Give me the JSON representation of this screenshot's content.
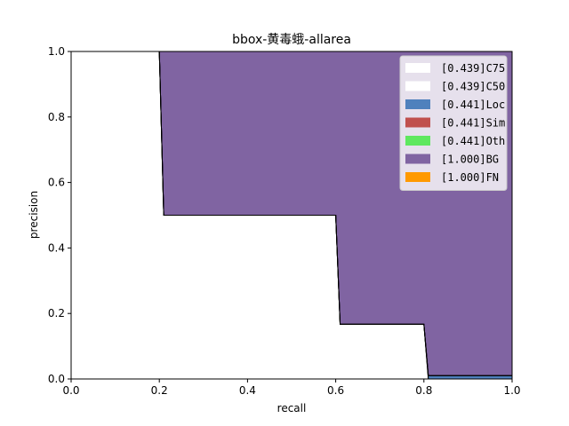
{
  "chart_data": {
    "type": "area",
    "title": "bbox-黄毒蛾-allarea",
    "xlabel": "recall",
    "ylabel": "precision",
    "xlim": [
      0,
      1
    ],
    "ylim": [
      0,
      1
    ],
    "xticks": [
      "0.0",
      "0.2",
      "0.4",
      "0.6",
      "0.8",
      "1.0"
    ],
    "yticks": [
      "0.0",
      "0.2",
      "0.4",
      "0.6",
      "0.8",
      "1.0"
    ],
    "grid": false,
    "legend_position": "top-right",
    "series": [
      {
        "name": "[0.439]C75",
        "color": "#ffffff",
        "x": [
          0,
          0.2,
          0.21,
          0.6,
          0.61,
          0.8,
          0.81,
          1.0
        ],
        "y": [
          1.0,
          1.0,
          0.5,
          0.5,
          0.167,
          0.167,
          0,
          0
        ]
      },
      {
        "name": "[0.439]C50",
        "color": "#ffffff",
        "x": [
          0,
          0.2,
          0.21,
          0.6,
          0.61,
          0.8,
          0.81,
          1.0
        ],
        "y": [
          1.0,
          1.0,
          0.5,
          0.5,
          0.167,
          0.167,
          0,
          0
        ]
      },
      {
        "name": "[0.441]Loc",
        "color": "#4f81bd",
        "x": [
          0,
          0.2,
          0.21,
          0.6,
          0.61,
          0.8,
          0.81,
          1.0
        ],
        "y": [
          1.0,
          1.0,
          0.5,
          0.5,
          0.167,
          0.167,
          0.01,
          0.01
        ]
      },
      {
        "name": "[0.441]Sim",
        "color": "#c0504d",
        "x": [
          0,
          0.2,
          0.21,
          0.6,
          0.61,
          0.8,
          0.81,
          1.0
        ],
        "y": [
          1.0,
          1.0,
          0.5,
          0.5,
          0.167,
          0.167,
          0.01,
          0.01
        ]
      },
      {
        "name": "[0.441]Oth",
        "color": "#5fe85f",
        "x": [
          0,
          0.2,
          0.21,
          0.6,
          0.61,
          0.8,
          0.81,
          1.0
        ],
        "y": [
          1.0,
          1.0,
          0.5,
          0.5,
          0.167,
          0.167,
          0.01,
          0.01
        ]
      },
      {
        "name": "[1.000]BG",
        "color": "#8064a2",
        "x": [
          0,
          1.0
        ],
        "y": [
          1.0,
          1.0
        ]
      },
      {
        "name": "[1.000]FN",
        "color": "#ff9900",
        "x": [
          0,
          1.0
        ],
        "y": [
          1.0,
          1.0
        ]
      }
    ]
  }
}
